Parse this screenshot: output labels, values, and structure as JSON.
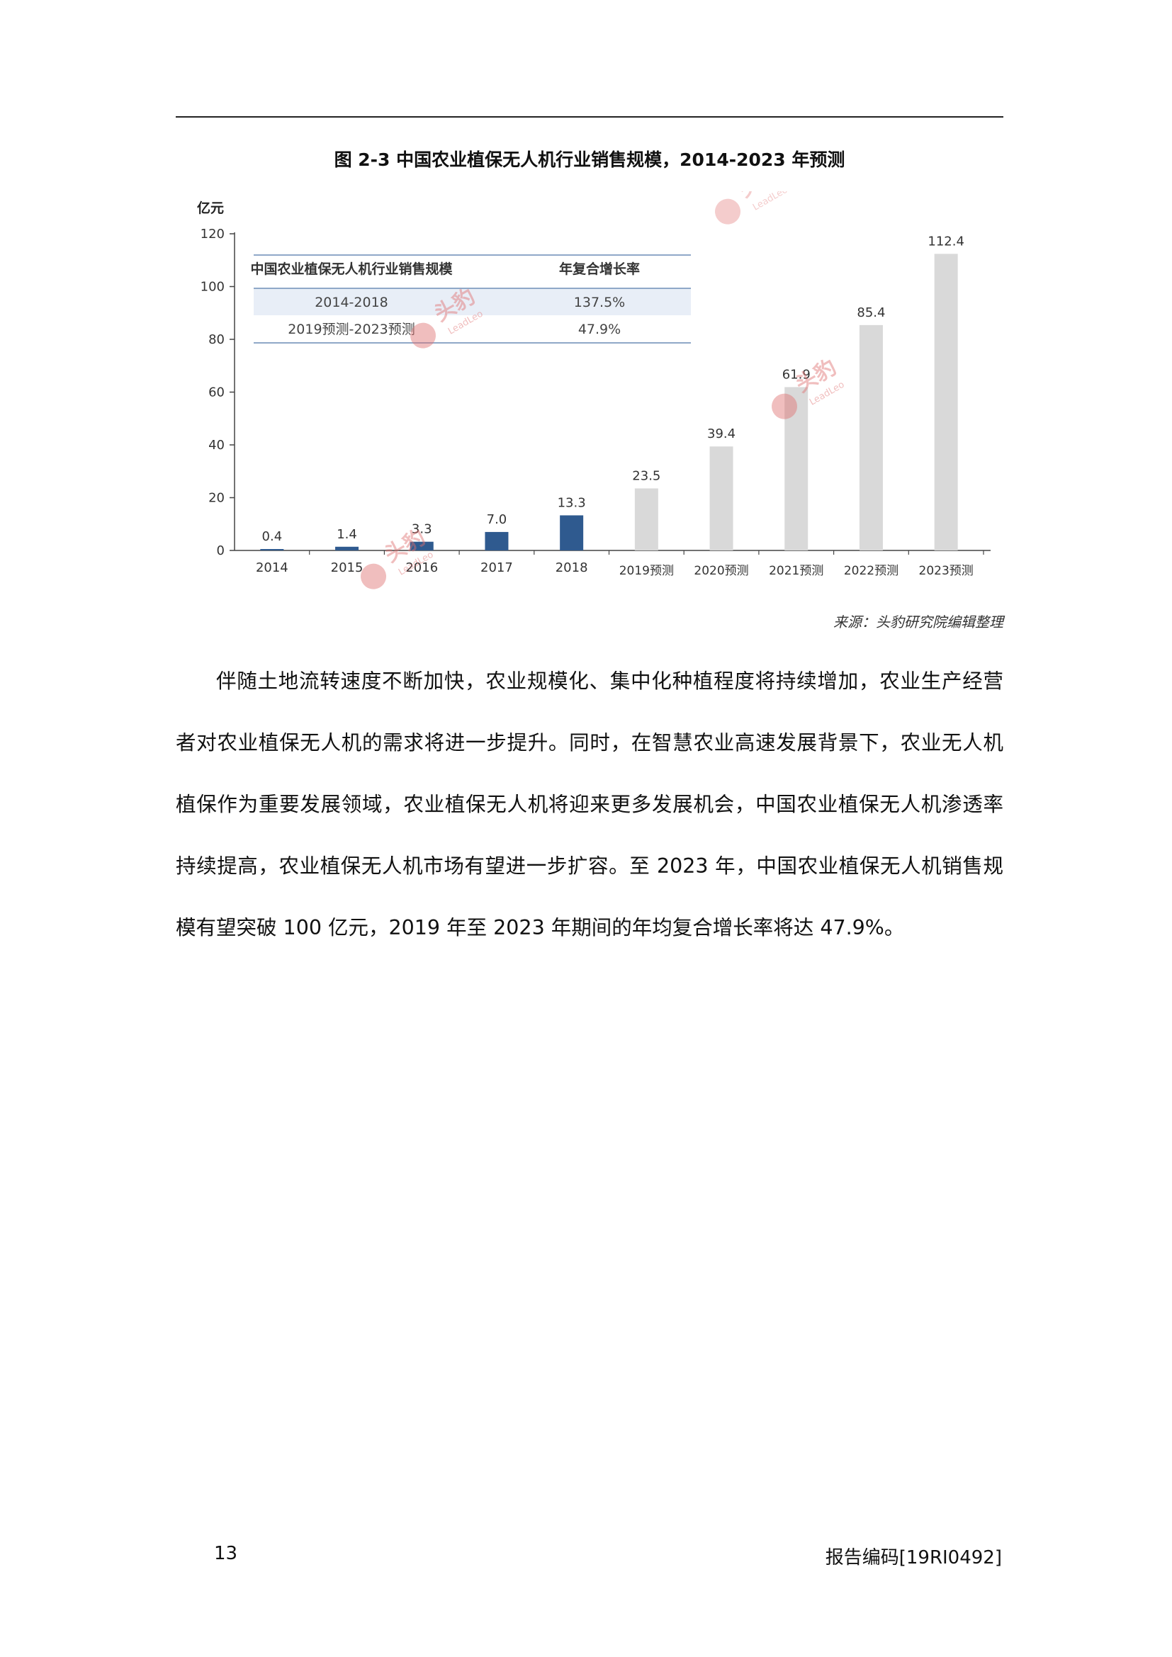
{
  "figure_title": "图 2-3 中国农业植保无人机行业销售规模，2014-2023 年预测",
  "source_note": "来源：头豹研究院编辑整理",
  "watermark_text": "头豹",
  "watermark_sub": "LeadLeo",
  "colors": {
    "actual": "#2f5a8f",
    "forecast": "#d9d9d9",
    "table_band": "#e8eef7",
    "table_rule": "#8fa8c8",
    "watermark": "#e07070"
  },
  "chart_data": {
    "type": "bar",
    "ylabel": "亿元",
    "ylim": [
      0,
      120
    ],
    "yticks": [
      0,
      20,
      40,
      60,
      80,
      100,
      120
    ],
    "categories": [
      "2014",
      "2015",
      "2016",
      "2017",
      "2018",
      "2019预测",
      "2020预测",
      "2021预测",
      "2022预测",
      "2023预测"
    ],
    "values": [
      0.4,
      1.4,
      3.3,
      7.0,
      13.3,
      23.5,
      39.4,
      61.9,
      85.4,
      112.4
    ],
    "value_labels": [
      "0.4",
      "1.4",
      "3.3",
      "7.0",
      "13.3",
      "23.5",
      "39.4",
      "61.9",
      "85.4",
      "112.4"
    ],
    "forecast_from_index": 5,
    "inset_table": {
      "headers": [
        "中国农业植保无人机行业销售规模",
        "年复合增长率"
      ],
      "rows": [
        [
          "2014-2018",
          "137.5%"
        ],
        [
          "2019预测-2023预测",
          "47.9%"
        ]
      ]
    }
  },
  "paragraph": "伴随土地流转速度不断加快，农业规模化、集中化种植程度将持续增加，农业生产经营者对农业植保无人机的需求将进一步提升。同时，在智慧农业高速发展背景下，农业无人机植保作为重要发展领域，农业植保无人机将迎来更多发展机会，中国农业植保无人机渗透率持续提高，农业植保无人机市场有望进一步扩容。至 2023 年，中国农业植保无人机销售规模有望突破 100 亿元，2019 年至 2023 年期间的年均复合增长率将达 47.9%。",
  "footer": {
    "page_number": "13",
    "report_code": "报告编码[19RI0492]"
  }
}
